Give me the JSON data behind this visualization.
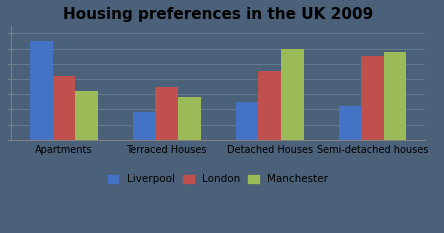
{
  "title": "Housing preferences in the UK 2009",
  "categories": [
    "Apartments",
    "Terraced Houses",
    "Detached Houses",
    "Semi-detached houses"
  ],
  "cities": [
    "Liverpool",
    "London",
    "Manchester"
  ],
  "values": {
    "Liverpool": [
      6.5,
      1.8,
      2.5,
      2.2
    ],
    "London": [
      4.2,
      3.5,
      4.5,
      5.5
    ],
    "Manchester": [
      3.2,
      2.8,
      6.0,
      5.8
    ]
  },
  "colors": {
    "Liverpool": "#4472C4",
    "London": "#C0504D",
    "Manchester": "#9BBB59"
  },
  "ylim": [
    0,
    7.5
  ],
  "ytick_positions": [
    0,
    1,
    2,
    3,
    4,
    5,
    6,
    7
  ],
  "bar_width": 0.22,
  "background_color": "#4B6079",
  "plot_bg_color": "#4B6079",
  "grid_color": "#6A7F95",
  "title_fontsize": 11,
  "tick_fontsize": 7,
  "legend_fontsize": 7.5,
  "title_color": "#000000"
}
